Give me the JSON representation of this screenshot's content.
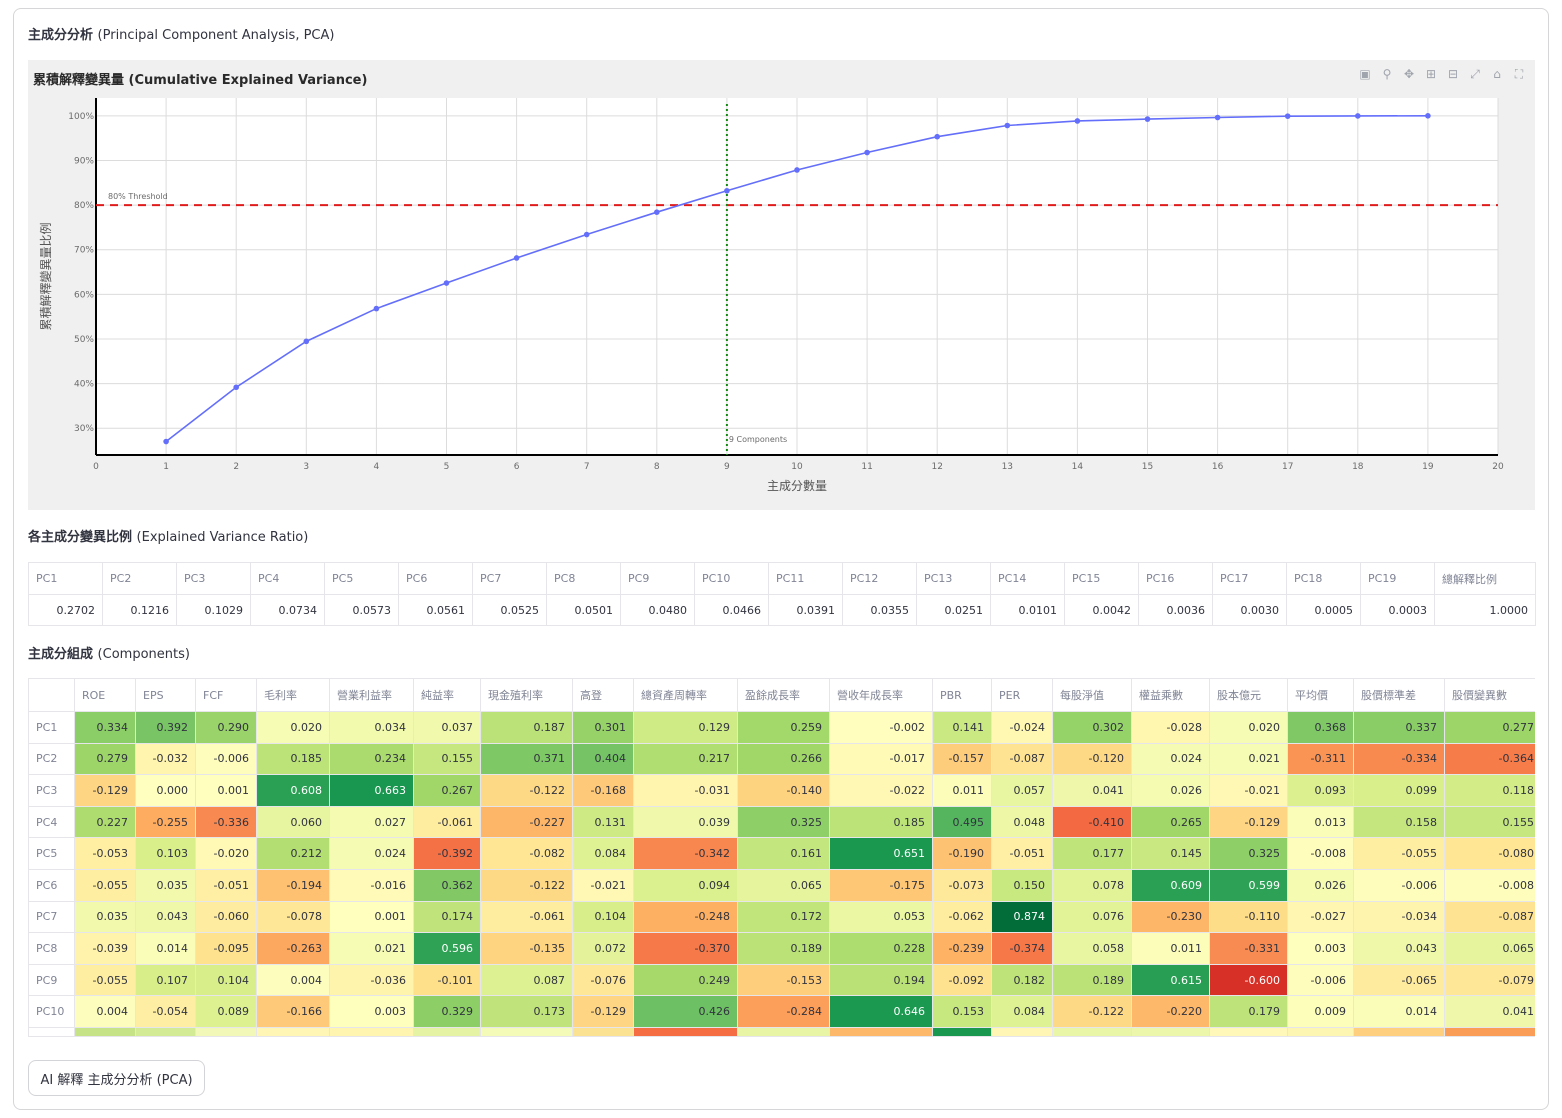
{
  "page": {
    "title": "主成分分析",
    "title_sub": "(Principal Component Analysis, PCA)",
    "evr_title": "各主成分變異比例",
    "evr_title_sub": "(Explained Variance Ratio)",
    "components_title": "主成分組成",
    "components_title_sub": "(Components)",
    "ai_button": "AI 解釋 主成分分析 (PCA)"
  },
  "modebar": [
    "camera-icon",
    "zoom-icon",
    "pan-icon",
    "zoom-in-icon",
    "zoom-out-icon",
    "autoscale-icon",
    "home-icon",
    "fullscreen-icon"
  ],
  "chart_data": {
    "type": "line",
    "title": "累積解釋變異量 (Cumulative Explained Variance)",
    "xlabel": "主成分數量",
    "ylabel": "累積解釋變異量比例",
    "x": [
      1,
      2,
      3,
      4,
      5,
      6,
      7,
      8,
      9,
      10,
      11,
      12,
      13,
      14,
      15,
      16,
      17,
      18,
      19
    ],
    "values": [
      0.2702,
      0.3918,
      0.4947,
      0.5681,
      0.6254,
      0.6815,
      0.734,
      0.7841,
      0.8321,
      0.8787,
      0.9178,
      0.9533,
      0.9784,
      0.9885,
      0.9927,
      0.9963,
      0.9993,
      0.9998,
      1.0001
    ],
    "xlim": [
      0,
      20
    ],
    "ylim": [
      0.24,
      1.04
    ],
    "xticks": [
      "0",
      "1",
      "2",
      "3",
      "4",
      "5",
      "6",
      "7",
      "8",
      "9",
      "10",
      "11",
      "12",
      "13",
      "14",
      "15",
      "16",
      "17",
      "18",
      "19",
      "20"
    ],
    "yticks": [
      {
        "v": 0.3,
        "label": "30%"
      },
      {
        "v": 0.4,
        "label": "40%"
      },
      {
        "v": 0.5,
        "label": "50%"
      },
      {
        "v": 0.6,
        "label": "60%"
      },
      {
        "v": 0.7,
        "label": "70%"
      },
      {
        "v": 0.8,
        "label": "80%"
      },
      {
        "v": 0.9,
        "label": "90%"
      },
      {
        "v": 1.0,
        "label": "100%"
      }
    ],
    "threshold": {
      "value": 0.8,
      "label": "80% Threshold",
      "color": "#e01b1b"
    },
    "vline": {
      "value": 9,
      "label": "9 Components",
      "color": "#128a12"
    },
    "line_color": "#636efa",
    "grid": true
  },
  "evr": {
    "headers": [
      "PC1",
      "PC2",
      "PC3",
      "PC4",
      "PC5",
      "PC6",
      "PC7",
      "PC8",
      "PC9",
      "PC10",
      "PC11",
      "PC12",
      "PC13",
      "PC14",
      "PC15",
      "PC16",
      "PC17",
      "PC18",
      "PC19",
      "總解釋比例"
    ],
    "values": [
      "0.2702",
      "0.1216",
      "0.1029",
      "0.0734",
      "0.0573",
      "0.0561",
      "0.0525",
      "0.0501",
      "0.0480",
      "0.0466",
      "0.0391",
      "0.0355",
      "0.0251",
      "0.0101",
      "0.0042",
      "0.0036",
      "0.0030",
      "0.0005",
      "0.0003",
      "1.0000"
    ]
  },
  "components": {
    "headers": [
      "ROE",
      "EPS",
      "FCF",
      "毛利率",
      "營業利益率",
      "純益率",
      "現金殖利率",
      "高登",
      "總資產周轉率",
      "盈餘成長率",
      "營收年成長率",
      "PBR",
      "PER",
      "每股淨值",
      "權益乘數",
      "股本億元",
      "平均價",
      "股價標準差",
      "股價變異數"
    ],
    "rows": [
      {
        "name": "PC1",
        "values": [
          0.334,
          0.392,
          0.29,
          0.02,
          0.034,
          0.037,
          0.187,
          0.301,
          0.129,
          0.259,
          -0.002,
          0.141,
          -0.024,
          0.302,
          -0.028,
          0.02,
          0.368,
          0.337,
          0.277
        ]
      },
      {
        "name": "PC2",
        "values": [
          0.279,
          -0.032,
          -0.006,
          0.185,
          0.234,
          0.155,
          0.371,
          0.404,
          0.217,
          0.266,
          -0.017,
          -0.157,
          -0.087,
          -0.12,
          0.024,
          0.021,
          -0.311,
          -0.334,
          -0.364
        ]
      },
      {
        "name": "PC3",
        "values": [
          -0.129,
          0.0,
          0.001,
          0.608,
          0.663,
          0.267,
          -0.122,
          -0.168,
          -0.031,
          -0.14,
          -0.022,
          0.011,
          0.057,
          0.041,
          0.026,
          -0.021,
          0.093,
          0.099,
          0.118
        ]
      },
      {
        "name": "PC4",
        "values": [
          0.227,
          -0.255,
          -0.336,
          0.06,
          0.027,
          -0.061,
          -0.227,
          0.131,
          0.039,
          0.325,
          0.185,
          0.495,
          0.048,
          -0.41,
          0.265,
          -0.129,
          0.013,
          0.158,
          0.155
        ]
      },
      {
        "name": "PC5",
        "values": [
          -0.053,
          0.103,
          -0.02,
          0.212,
          0.024,
          -0.392,
          -0.082,
          0.084,
          -0.342,
          0.161,
          0.651,
          -0.19,
          -0.051,
          0.177,
          0.145,
          0.325,
          -0.008,
          -0.055,
          -0.08
        ]
      },
      {
        "name": "PC6",
        "values": [
          -0.055,
          0.035,
          -0.051,
          -0.194,
          -0.016,
          0.362,
          -0.122,
          -0.021,
          0.094,
          0.065,
          -0.175,
          -0.073,
          0.15,
          0.078,
          0.609,
          0.599,
          0.026,
          -0.006,
          -0.008
        ]
      },
      {
        "name": "PC7",
        "values": [
          0.035,
          0.043,
          -0.06,
          -0.078,
          0.001,
          0.174,
          -0.061,
          0.104,
          -0.248,
          0.172,
          0.053,
          -0.062,
          0.874,
          0.076,
          -0.23,
          -0.11,
          -0.027,
          -0.034,
          -0.087
        ]
      },
      {
        "name": "PC8",
        "values": [
          -0.039,
          0.014,
          -0.095,
          -0.263,
          0.021,
          0.596,
          -0.135,
          0.072,
          -0.37,
          0.189,
          0.228,
          -0.239,
          -0.374,
          0.058,
          0.011,
          -0.331,
          0.003,
          0.043,
          0.065
        ]
      },
      {
        "name": "PC9",
        "values": [
          -0.055,
          0.107,
          0.104,
          0.004,
          -0.036,
          -0.101,
          0.087,
          -0.076,
          0.249,
          -0.153,
          0.194,
          -0.092,
          0.182,
          0.189,
          0.615,
          -0.6,
          -0.006,
          -0.065,
          -0.079
        ]
      },
      {
        "name": "PC10",
        "values": [
          0.004,
          -0.054,
          0.089,
          -0.166,
          0.003,
          0.329,
          0.173,
          -0.129,
          0.426,
          -0.284,
          0.646,
          0.153,
          0.084,
          -0.122,
          -0.22,
          0.179,
          0.009,
          0.014,
          0.041
        ]
      }
    ],
    "partial_row": [
      "#c6e388",
      "#d3eb95",
      "#f2f9b8",
      "#fff5b5",
      "#fff4b0",
      "#e5f4a4",
      "#f4fab7",
      "#fbe192",
      "#f46d43",
      "#e7f5a5",
      "#fdb86a",
      "#1a9850",
      "#fff6b5",
      "#e9f6a8",
      "#ecf7ab",
      "#fff8b8",
      "#fdf6b3",
      "#fdcf7f",
      "#f99d57"
    ]
  }
}
